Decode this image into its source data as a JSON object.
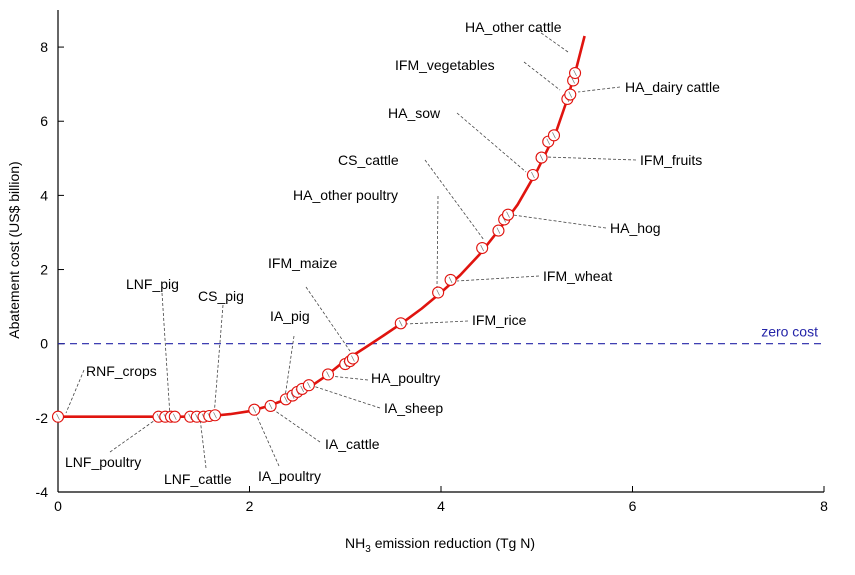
{
  "chart_data": {
    "type": "line",
    "title": "",
    "xlabel": {
      "prefix": "NH",
      "sub": "3",
      "suffix": " emission reduction (Tg N)"
    },
    "ylabel": "Abatement cost (US$ billion)",
    "xlim": [
      0,
      8
    ],
    "ylim": [
      -4,
      9
    ],
    "xticks": [
      0,
      2,
      4,
      6,
      8
    ],
    "yticks": [
      -4,
      -2,
      0,
      2,
      4,
      6,
      8
    ],
    "grid": false,
    "series": [
      {
        "name": "",
        "color": "#e0140f",
        "curve": [
          [
            0,
            -1.97
          ],
          [
            1.0,
            -1.97
          ],
          [
            1.3,
            -1.97
          ],
          [
            1.6,
            -1.95
          ],
          [
            1.8,
            -1.9
          ],
          [
            2.0,
            -1.82
          ],
          [
            2.2,
            -1.68
          ],
          [
            2.4,
            -1.48
          ],
          [
            2.6,
            -1.22
          ],
          [
            2.8,
            -0.87
          ],
          [
            3.0,
            -0.45
          ],
          [
            3.2,
            -0.12
          ],
          [
            3.4,
            0.22
          ],
          [
            3.6,
            0.57
          ],
          [
            3.8,
            0.95
          ],
          [
            4.0,
            1.38
          ],
          [
            4.2,
            1.85
          ],
          [
            4.4,
            2.4
          ],
          [
            4.6,
            3.05
          ],
          [
            4.8,
            3.75
          ],
          [
            5.0,
            4.65
          ],
          [
            5.2,
            5.7
          ],
          [
            5.3,
            6.45
          ],
          [
            5.4,
            7.3
          ],
          [
            5.5,
            8.3
          ]
        ],
        "points": [
          [
            0,
            -1.97
          ],
          [
            1.05,
            -1.97
          ],
          [
            1.12,
            -1.97
          ],
          [
            1.18,
            -1.97
          ],
          [
            1.22,
            -1.97
          ],
          [
            1.38,
            -1.97
          ],
          [
            1.45,
            -1.97
          ],
          [
            1.52,
            -1.97
          ],
          [
            1.58,
            -1.95
          ],
          [
            1.64,
            -1.93
          ],
          [
            2.05,
            -1.78
          ],
          [
            2.22,
            -1.68
          ],
          [
            2.38,
            -1.5
          ],
          [
            2.45,
            -1.4
          ],
          [
            2.5,
            -1.3
          ],
          [
            2.55,
            -1.22
          ],
          [
            2.62,
            -1.12
          ],
          [
            2.82,
            -0.83
          ],
          [
            3.0,
            -0.55
          ],
          [
            3.05,
            -0.47
          ],
          [
            3.08,
            -0.4
          ],
          [
            3.58,
            0.55
          ],
          [
            3.97,
            1.38
          ],
          [
            4.1,
            1.72
          ],
          [
            4.43,
            2.58
          ],
          [
            4.6,
            3.05
          ],
          [
            4.66,
            3.35
          ],
          [
            4.7,
            3.48
          ],
          [
            4.96,
            4.55
          ],
          [
            5.05,
            5.02
          ],
          [
            5.12,
            5.45
          ],
          [
            5.18,
            5.62
          ],
          [
            5.32,
            6.6
          ],
          [
            5.35,
            6.72
          ],
          [
            5.38,
            7.1
          ],
          [
            5.4,
            7.3
          ]
        ]
      }
    ],
    "reference_line": {
      "y": 0,
      "label": "zero cost",
      "color": "#2424a8"
    },
    "annotations": [
      {
        "text": "HA_other cattle",
        "x": 5.4,
        "y": 7.3
      },
      {
        "text": "IFM_vegetables",
        "x": 5.32,
        "y": 6.6
      },
      {
        "text": "HA_dairy cattle",
        "x": 5.38,
        "y": 6.72
      },
      {
        "text": "HA_sow",
        "x": 4.96,
        "y": 4.55
      },
      {
        "text": "IFM_fruits",
        "x": 5.05,
        "y": 5.02
      },
      {
        "text": "CS_cattle",
        "x": 4.43,
        "y": 2.58
      },
      {
        "text": "HA_other poultry",
        "x": 3.97,
        "y": 1.38
      },
      {
        "text": "HA_hog",
        "x": 4.68,
        "y": 3.45
      },
      {
        "text": "IFM_maize",
        "x": 3.03,
        "y": -0.47
      },
      {
        "text": "IFM_wheat",
        "x": 4.1,
        "y": 1.72
      },
      {
        "text": "LNF_pig",
        "x": 1.17,
        "y": -1.97
      },
      {
        "text": "CS_pig",
        "x": 1.63,
        "y": -1.93
      },
      {
        "text": "IA_pig",
        "x": 2.38,
        "y": -1.5
      },
      {
        "text": "IFM_rice",
        "x": 3.58,
        "y": 0.55
      },
      {
        "text": "RNF_crops",
        "x": 0,
        "y": -1.97
      },
      {
        "text": "HA_poultry",
        "x": 2.82,
        "y": -0.83
      },
      {
        "text": "IA_sheep",
        "x": 2.62,
        "y": -1.12
      },
      {
        "text": "IA_cattle",
        "x": 2.22,
        "y": -1.68
      },
      {
        "text": "LNF_poultry",
        "x": 1.1,
        "y": -1.97
      },
      {
        "text": "LNF_cattle",
        "x": 1.45,
        "y": -1.97
      },
      {
        "text": "IA_poultry",
        "x": 2.05,
        "y": -1.78
      }
    ]
  }
}
